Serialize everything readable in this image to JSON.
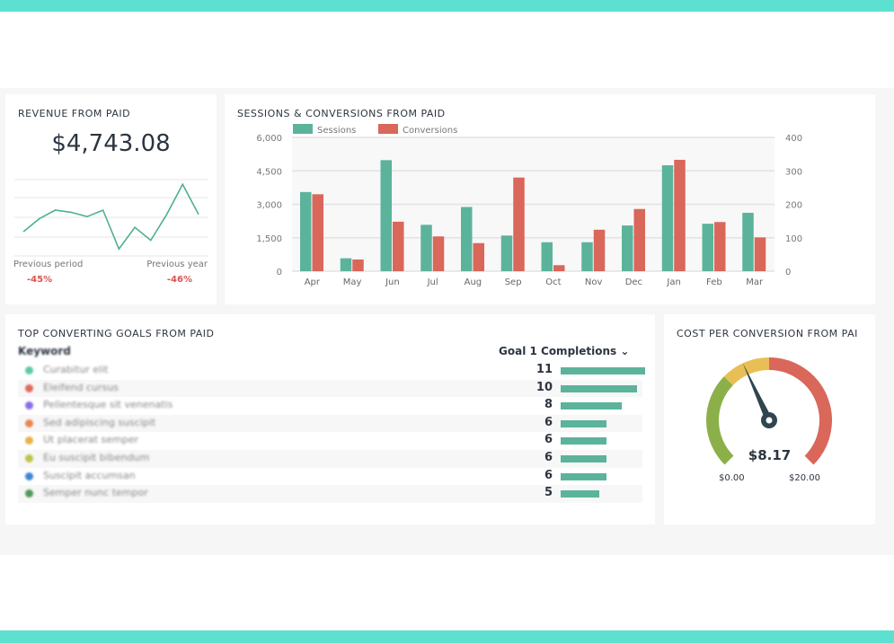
{
  "revenue": {
    "title": "REVENUE FROM PAID",
    "value": "$4,743.08",
    "prev_period_label": "Previous period",
    "prev_year_label": "Previous year",
    "prev_period_change": "-45%",
    "prev_year_change": "-46%",
    "trend": [
      5,
      8,
      10,
      9.5,
      8.5,
      10,
      1,
      6,
      3,
      9,
      16,
      9
    ]
  },
  "chart_data": {
    "type": "bar",
    "title": "SESSIONS & CONVERSIONS FROM PAID",
    "categories": [
      "Apr",
      "May",
      "Jun",
      "Jul",
      "Aug",
      "Sep",
      "Oct",
      "Nov",
      "Dec",
      "Jan",
      "Feb",
      "Mar"
    ],
    "series": [
      {
        "name": "Sessions",
        "axis": "left",
        "color": "#5cb39b",
        "values": [
          3550,
          580,
          4980,
          2080,
          2880,
          1600,
          1300,
          1300,
          2050,
          4750,
          2130,
          2620
        ]
      },
      {
        "name": "Conversions",
        "axis": "right",
        "color": "#d9675a",
        "values": [
          230,
          35,
          148,
          104,
          84,
          280,
          18,
          124,
          186,
          333,
          147,
          101
        ]
      }
    ],
    "y_left": {
      "range": [
        0,
        6000
      ],
      "ticks": [
        "0",
        "1,500",
        "3,000",
        "4,500",
        "6,000"
      ]
    },
    "y_right": {
      "range": [
        0,
        400
      ],
      "ticks": [
        "0",
        "100",
        "200",
        "300",
        "400"
      ]
    },
    "legend": "top-left"
  },
  "goals": {
    "title": "TOP CONVERTING GOALS FROM PAID",
    "col_keyword": "Keyword",
    "col_metric": "Goal 1 Completions",
    "max": 11,
    "rows": [
      {
        "k": "Curabitur elit",
        "v": 11,
        "c": "#5cc9a7"
      },
      {
        "k": "Eleifend cursus",
        "v": 10,
        "c": "#e06a60"
      },
      {
        "k": "Pellentesque sit venenatis",
        "v": 8,
        "c": "#8a6de9"
      },
      {
        "k": "Sed adipiscing suscipit",
        "v": 6,
        "c": "#e8874f"
      },
      {
        "k": "Ut placerat semper",
        "v": 6,
        "c": "#e6b345"
      },
      {
        "k": "Eu suscipit bibendum",
        "v": 6,
        "c": "#bfc24a"
      },
      {
        "k": "Suscipit accumsan",
        "v": 6,
        "c": "#3f86d4"
      },
      {
        "k": "Semper nunc tempor",
        "v": 5,
        "c": "#4f9a5a"
      }
    ]
  },
  "cpc": {
    "title": "COST PER CONVERSION FROM PAI",
    "value": "$8.17",
    "value_num": 8.17,
    "min": "$0.00",
    "max": "$20.00",
    "max_num": 20
  }
}
